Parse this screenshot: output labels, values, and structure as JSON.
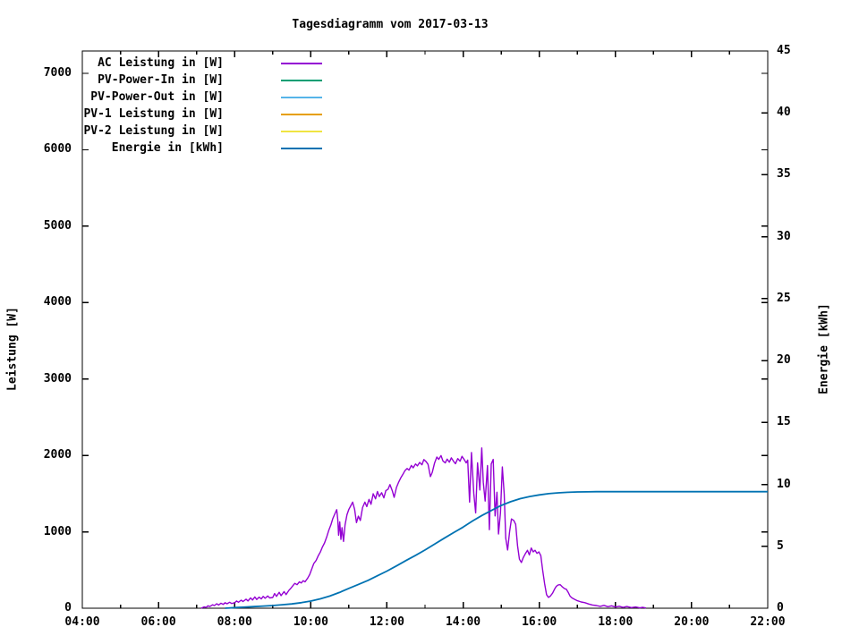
{
  "chart_data": {
    "type": "line",
    "title": "Tagesdiagramm vom 2017-03-13",
    "grid": false,
    "legend_position": "top-left-inside",
    "x_axis": {
      "unit": "time of day",
      "range_hours": [
        4,
        22
      ],
      "major_tick_hours": [
        4,
        6,
        8,
        10,
        12,
        14,
        16,
        18,
        20,
        22
      ],
      "major_tick_labels": [
        "04:00",
        "06:00",
        "08:00",
        "10:00",
        "12:00",
        "14:00",
        "16:00",
        "18:00",
        "20:00",
        "22:00"
      ],
      "minor_tick_interval_hours": 1
    },
    "y_axis_left": {
      "label": "Leistung [W]",
      "range": [
        0,
        7293
      ],
      "tick_interval": 1000,
      "ticks": [
        0,
        1000,
        2000,
        3000,
        4000,
        5000,
        6000,
        7000
      ],
      "tick_labels": [
        "0",
        "1000",
        "2000",
        "3000",
        "4000",
        "5000",
        "6000",
        "7000"
      ]
    },
    "y_axis_right": {
      "label": "Energie [kWh]",
      "range": [
        0,
        45
      ],
      "tick_interval": 5,
      "ticks": [
        0,
        5,
        10,
        15,
        20,
        25,
        30,
        35,
        40,
        45
      ],
      "tick_labels": [
        "0",
        "5",
        "10",
        "15",
        "20",
        "25",
        "30",
        "35",
        "40",
        "45"
      ]
    },
    "series": [
      {
        "name": "AC Leistung in [W]",
        "color": "#9400d3",
        "axis": "left",
        "points": [
          [
            7.12,
            0
          ],
          [
            7.2,
            18
          ],
          [
            7.25,
            10
          ],
          [
            7.3,
            32
          ],
          [
            7.35,
            22
          ],
          [
            7.42,
            45
          ],
          [
            7.47,
            35
          ],
          [
            7.53,
            58
          ],
          [
            7.58,
            42
          ],
          [
            7.64,
            66
          ],
          [
            7.7,
            50
          ],
          [
            7.75,
            72
          ],
          [
            7.8,
            58
          ],
          [
            7.87,
            78
          ],
          [
            7.92,
            62
          ],
          [
            8.0,
            70
          ],
          [
            8.05,
            95
          ],
          [
            8.1,
            78
          ],
          [
            8.17,
            105
          ],
          [
            8.22,
            88
          ],
          [
            8.3,
            118
          ],
          [
            8.35,
            95
          ],
          [
            8.42,
            135
          ],
          [
            8.47,
            108
          ],
          [
            8.53,
            148
          ],
          [
            8.58,
            115
          ],
          [
            8.64,
            145
          ],
          [
            8.7,
            122
          ],
          [
            8.75,
            155
          ],
          [
            8.8,
            130
          ],
          [
            8.87,
            160
          ],
          [
            8.92,
            135
          ],
          [
            9.0,
            140
          ],
          [
            9.05,
            192
          ],
          [
            9.1,
            155
          ],
          [
            9.17,
            208
          ],
          [
            9.22,
            165
          ],
          [
            9.3,
            218
          ],
          [
            9.35,
            178
          ],
          [
            9.42,
            232
          ],
          [
            9.47,
            258
          ],
          [
            9.53,
            295
          ],
          [
            9.58,
            325
          ],
          [
            9.64,
            308
          ],
          [
            9.7,
            345
          ],
          [
            9.75,
            330
          ],
          [
            9.8,
            360
          ],
          [
            9.85,
            345
          ],
          [
            9.92,
            395
          ],
          [
            9.97,
            440
          ],
          [
            10.03,
            520
          ],
          [
            10.08,
            585
          ],
          [
            10.14,
            625
          ],
          [
            10.2,
            690
          ],
          [
            10.25,
            735
          ],
          [
            10.3,
            795
          ],
          [
            10.36,
            855
          ],
          [
            10.42,
            935
          ],
          [
            10.47,
            1015
          ],
          [
            10.53,
            1095
          ],
          [
            10.58,
            1175
          ],
          [
            10.64,
            1245
          ],
          [
            10.68,
            1290
          ],
          [
            10.71,
            1160
          ],
          [
            10.73,
            955
          ],
          [
            10.76,
            1130
          ],
          [
            10.79,
            900
          ],
          [
            10.82,
            1055
          ],
          [
            10.86,
            875
          ],
          [
            10.9,
            1090
          ],
          [
            10.95,
            1225
          ],
          [
            11.0,
            1295
          ],
          [
            11.05,
            1340
          ],
          [
            11.1,
            1388
          ],
          [
            11.15,
            1295
          ],
          [
            11.2,
            1120
          ],
          [
            11.25,
            1205
          ],
          [
            11.3,
            1148
          ],
          [
            11.36,
            1318
          ],
          [
            11.42,
            1388
          ],
          [
            11.47,
            1330
          ],
          [
            11.53,
            1425
          ],
          [
            11.58,
            1360
          ],
          [
            11.64,
            1498
          ],
          [
            11.7,
            1432
          ],
          [
            11.75,
            1528
          ],
          [
            11.8,
            1462
          ],
          [
            11.86,
            1512
          ],
          [
            11.92,
            1445
          ],
          [
            11.97,
            1538
          ],
          [
            12.03,
            1558
          ],
          [
            12.08,
            1618
          ],
          [
            12.14,
            1538
          ],
          [
            12.19,
            1452
          ],
          [
            12.25,
            1582
          ],
          [
            12.31,
            1652
          ],
          [
            12.36,
            1705
          ],
          [
            12.42,
            1752
          ],
          [
            12.47,
            1798
          ],
          [
            12.53,
            1828
          ],
          [
            12.58,
            1808
          ],
          [
            12.64,
            1868
          ],
          [
            12.69,
            1838
          ],
          [
            12.75,
            1888
          ],
          [
            12.8,
            1862
          ],
          [
            12.86,
            1908
          ],
          [
            12.92,
            1878
          ],
          [
            12.97,
            1945
          ],
          [
            13.03,
            1918
          ],
          [
            13.08,
            1882
          ],
          [
            13.14,
            1722
          ],
          [
            13.19,
            1778
          ],
          [
            13.25,
            1898
          ],
          [
            13.31,
            1978
          ],
          [
            13.36,
            1948
          ],
          [
            13.42,
            1998
          ],
          [
            13.47,
            1928
          ],
          [
            13.53,
            1902
          ],
          [
            13.58,
            1952
          ],
          [
            13.64,
            1912
          ],
          [
            13.69,
            1968
          ],
          [
            13.75,
            1922
          ],
          [
            13.8,
            1892
          ],
          [
            13.86,
            1958
          ],
          [
            13.92,
            1925
          ],
          [
            13.97,
            1988
          ],
          [
            14.03,
            1945
          ],
          [
            14.08,
            1902
          ],
          [
            14.12,
            1938
          ],
          [
            14.17,
            1388
          ],
          [
            14.22,
            2038
          ],
          [
            14.28,
            1502
          ],
          [
            14.33,
            1248
          ],
          [
            14.38,
            1902
          ],
          [
            14.44,
            1548
          ],
          [
            14.49,
            2098
          ],
          [
            14.53,
            1648
          ],
          [
            14.58,
            1402
          ],
          [
            14.64,
            1868
          ],
          [
            14.69,
            1028
          ],
          [
            14.74,
            1888
          ],
          [
            14.79,
            1948
          ],
          [
            14.84,
            1208
          ],
          [
            14.89,
            1518
          ],
          [
            14.93,
            972
          ],
          [
            14.98,
            1245
          ],
          [
            15.03,
            1848
          ],
          [
            15.08,
            1495
          ],
          [
            15.12,
            918
          ],
          [
            15.17,
            762
          ],
          [
            15.22,
            998
          ],
          [
            15.27,
            1168
          ],
          [
            15.33,
            1148
          ],
          [
            15.38,
            1098
          ],
          [
            15.43,
            818
          ],
          [
            15.48,
            642
          ],
          [
            15.53,
            598
          ],
          [
            15.58,
            662
          ],
          [
            15.64,
            718
          ],
          [
            15.69,
            758
          ],
          [
            15.74,
            698
          ],
          [
            15.79,
            788
          ],
          [
            15.84,
            738
          ],
          [
            15.89,
            758
          ],
          [
            15.94,
            718
          ],
          [
            15.99,
            738
          ],
          [
            16.04,
            688
          ],
          [
            16.09,
            495
          ],
          [
            16.14,
            325
          ],
          [
            16.19,
            178
          ],
          [
            16.24,
            142
          ],
          [
            16.29,
            158
          ],
          [
            16.35,
            198
          ],
          [
            16.4,
            248
          ],
          [
            16.45,
            288
          ],
          [
            16.5,
            305
          ],
          [
            16.55,
            308
          ],
          [
            16.6,
            282
          ],
          [
            16.66,
            258
          ],
          [
            16.71,
            248
          ],
          [
            16.76,
            208
          ],
          [
            16.81,
            158
          ],
          [
            16.86,
            135
          ],
          [
            16.92,
            118
          ],
          [
            17.0,
            98
          ],
          [
            17.1,
            82
          ],
          [
            17.2,
            72
          ],
          [
            17.3,
            55
          ],
          [
            17.4,
            42
          ],
          [
            17.5,
            35
          ],
          [
            17.6,
            25
          ],
          [
            17.7,
            38
          ],
          [
            17.8,
            20
          ],
          [
            17.9,
            32
          ],
          [
            18.0,
            15
          ],
          [
            18.1,
            26
          ],
          [
            18.2,
            10
          ],
          [
            18.3,
            22
          ],
          [
            18.42,
            8
          ],
          [
            18.53,
            16
          ],
          [
            18.64,
            5
          ],
          [
            18.72,
            12
          ],
          [
            18.8,
            4
          ]
        ]
      },
      {
        "name": "PV-Power-In in [W]",
        "color": "#009e73",
        "axis": "left",
        "points": []
      },
      {
        "name": "PV-Power-Out in [W]",
        "color": "#56b4e9",
        "axis": "left",
        "points": []
      },
      {
        "name": "PV-1 Leistung in [W]",
        "color": "#e69f00",
        "axis": "left",
        "points": []
      },
      {
        "name": "PV-2 Leistung in [W]",
        "color": "#f0e442",
        "axis": "left",
        "points": []
      },
      {
        "name": "Energie in [kWh]",
        "color": "#0072b2",
        "axis": "right",
        "points": [
          [
            7.75,
            0
          ],
          [
            8.0,
            0.05
          ],
          [
            8.25,
            0.09
          ],
          [
            8.5,
            0.13
          ],
          [
            8.75,
            0.17
          ],
          [
            9.0,
            0.22
          ],
          [
            9.25,
            0.28
          ],
          [
            9.5,
            0.35
          ],
          [
            9.75,
            0.45
          ],
          [
            10.0,
            0.58
          ],
          [
            10.25,
            0.76
          ],
          [
            10.5,
            0.98
          ],
          [
            10.75,
            1.27
          ],
          [
            11.0,
            1.6
          ],
          [
            11.25,
            1.92
          ],
          [
            11.5,
            2.25
          ],
          [
            11.75,
            2.62
          ],
          [
            12.0,
            3.0
          ],
          [
            12.25,
            3.42
          ],
          [
            12.5,
            3.85
          ],
          [
            12.75,
            4.27
          ],
          [
            13.0,
            4.7
          ],
          [
            13.25,
            5.17
          ],
          [
            13.5,
            5.65
          ],
          [
            13.75,
            6.1
          ],
          [
            14.0,
            6.55
          ],
          [
            14.25,
            7.05
          ],
          [
            14.5,
            7.5
          ],
          [
            14.75,
            7.9
          ],
          [
            15.0,
            8.3
          ],
          [
            15.25,
            8.6
          ],
          [
            15.5,
            8.85
          ],
          [
            15.75,
            9.02
          ],
          [
            16.0,
            9.15
          ],
          [
            16.25,
            9.25
          ],
          [
            16.5,
            9.32
          ],
          [
            16.75,
            9.36
          ],
          [
            17.0,
            9.39
          ],
          [
            17.25,
            9.4
          ],
          [
            17.5,
            9.41
          ],
          [
            18.0,
            9.41
          ],
          [
            19.0,
            9.41
          ],
          [
            20.0,
            9.41
          ],
          [
            21.0,
            9.41
          ],
          [
            22.0,
            9.41
          ]
        ]
      }
    ],
    "legend": [
      {
        "label": "AC Leistung in [W]",
        "color": "#9400d3"
      },
      {
        "label": "PV-Power-In in [W]",
        "color": "#009e73"
      },
      {
        "label": "PV-Power-Out in [W]",
        "color": "#56b4e9"
      },
      {
        "label": "PV-1 Leistung in [W]",
        "color": "#e69f00"
      },
      {
        "label": "PV-2 Leistung in [W]",
        "color": "#f0e442"
      },
      {
        "label": "Energie in [kWh]",
        "color": "#0072b2"
      }
    ],
    "colors": {
      "foreground": "#000000",
      "background": "#ffffff"
    }
  }
}
